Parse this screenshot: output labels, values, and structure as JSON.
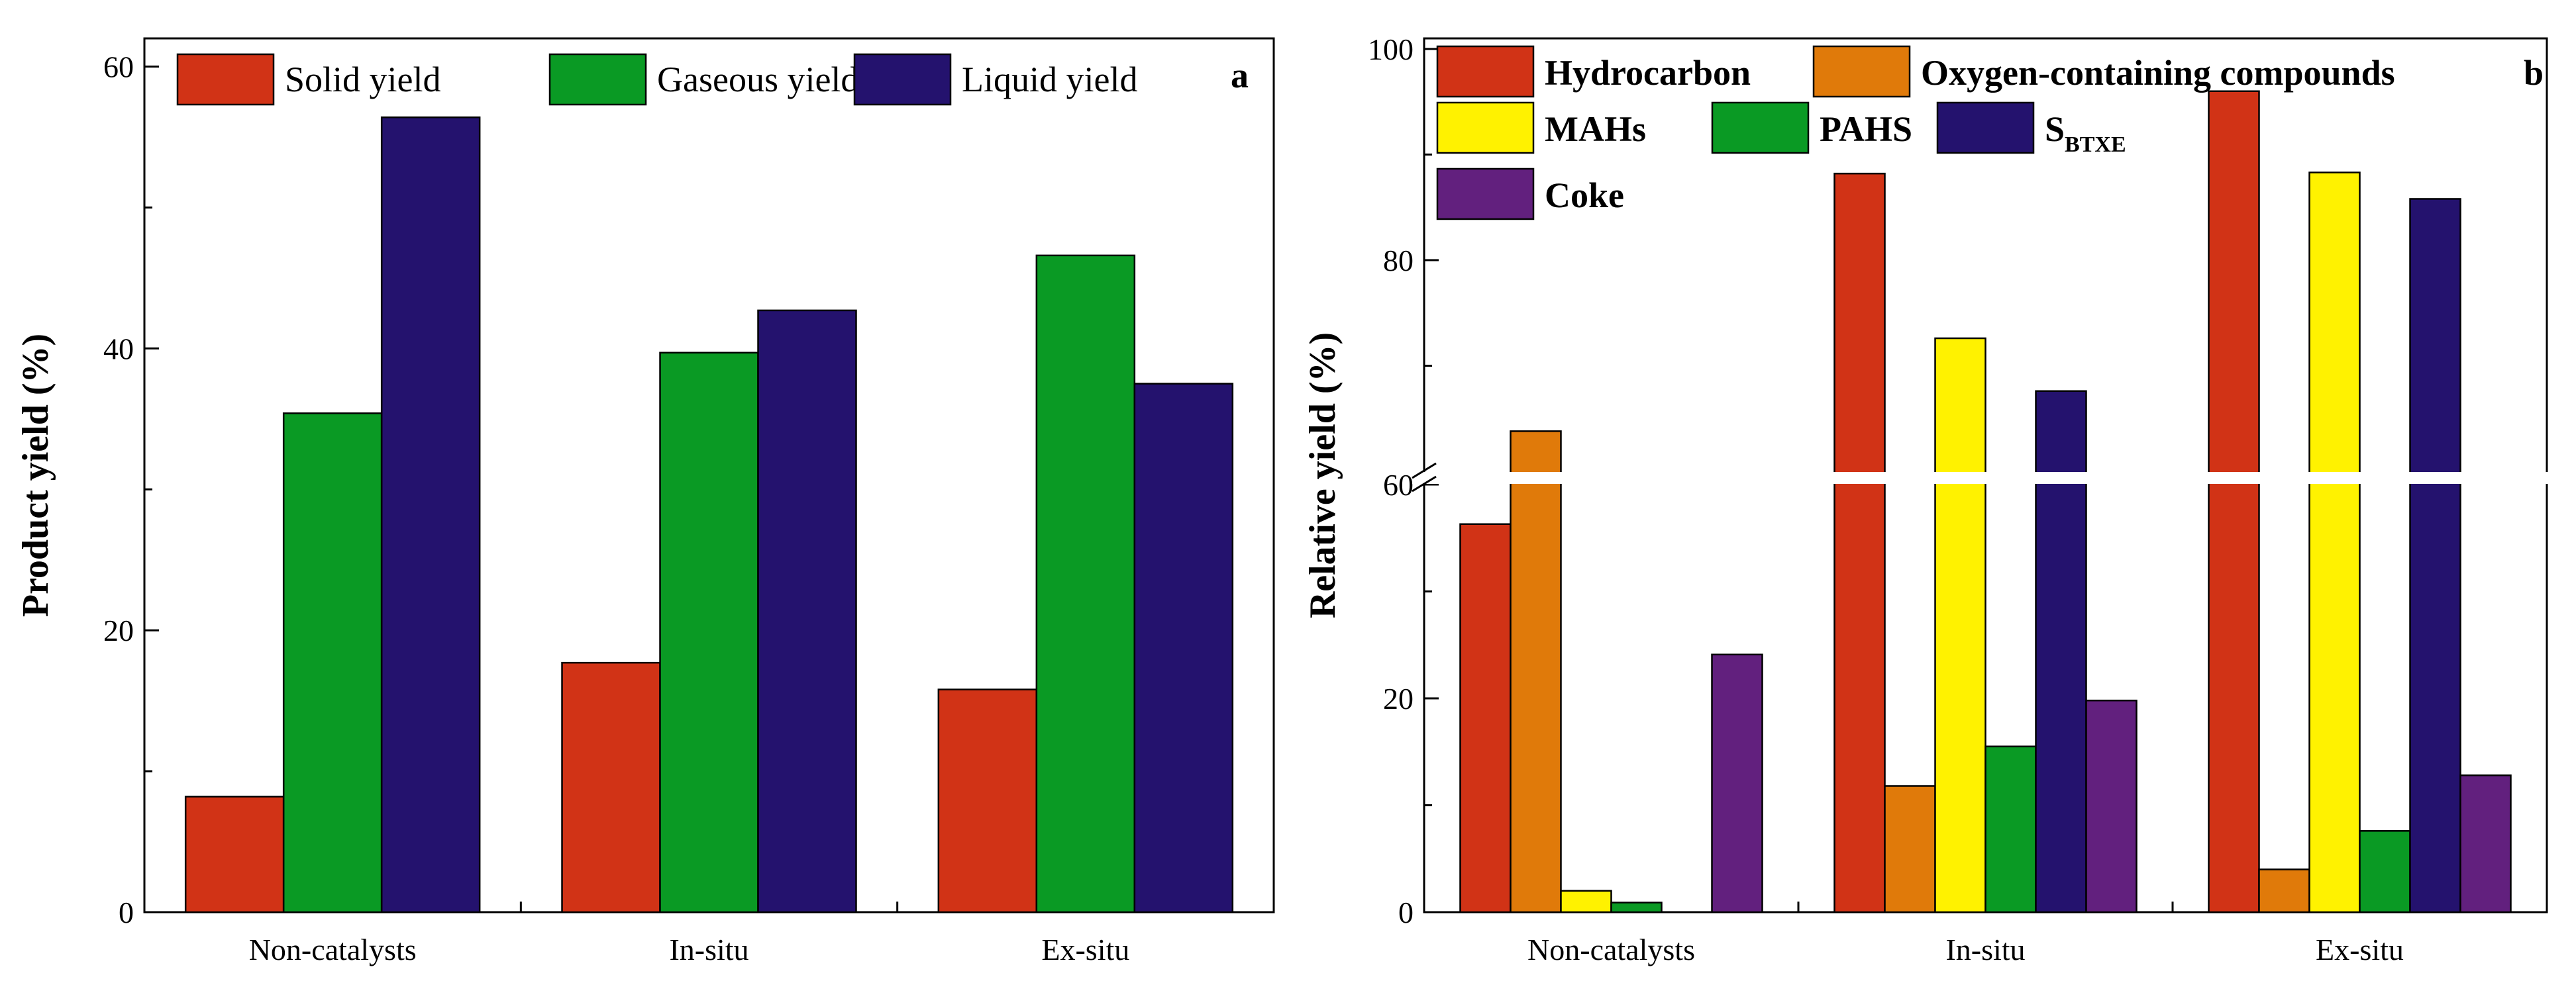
{
  "chart_data": [
    {
      "type": "bar",
      "panel_label": "a",
      "title": "",
      "xlabel": "",
      "ylabel": "Product yield (%)",
      "ylim": [
        0,
        62
      ],
      "yticks": [
        "0",
        "20",
        "40",
        "60"
      ],
      "categories": [
        "Non-catalysts",
        "In-situ",
        "Ex-situ"
      ],
      "series": [
        {
          "name": "Solid yield",
          "color": "#d13316",
          "values": [
            8.2,
            17.7,
            15.8
          ]
        },
        {
          "name": "Gaseous yield",
          "color": "#0a9a24",
          "values": [
            35.4,
            39.7,
            46.6
          ]
        },
        {
          "name": "Liquid yield",
          "color": "#24126e",
          "values": [
            56.4,
            42.7,
            37.5
          ]
        }
      ],
      "legend_position": "top"
    },
    {
      "type": "bar",
      "panel_label": "b",
      "title": "",
      "xlabel": "",
      "ylabel": "Relative yield (%)",
      "axis_break": [
        40,
        60
      ],
      "ylim": [
        0,
        101
      ],
      "yticks": [
        "0",
        "20",
        "60",
        "80",
        "100"
      ],
      "categories": [
        "Non-catalysts",
        "In-situ",
        "Ex-situ"
      ],
      "series": [
        {
          "name": "Hydrocarbon",
          "color": "#d13316",
          "values": [
            36.3,
            88.2,
            96.0
          ]
        },
        {
          "name": "Oxygen-containing compounds",
          "color": "#e07a0a",
          "values": [
            63.8,
            11.8,
            4.0
          ]
        },
        {
          "name": "MAHs",
          "color": "#fff200",
          "values": [
            2.0,
            72.6,
            88.3
          ]
        },
        {
          "name": "PAHS",
          "color": "#0a9a24",
          "values": [
            0.9,
            15.5,
            7.6
          ]
        },
        {
          "name": "S",
          "subscript": "BTXE",
          "color": "#24126e",
          "values": [
            0,
            67.6,
            85.8
          ]
        },
        {
          "name": "Coke",
          "color": "#62207e",
          "values": [
            24.1,
            19.8,
            12.8
          ]
        }
      ],
      "legend_position": "top-left"
    }
  ]
}
